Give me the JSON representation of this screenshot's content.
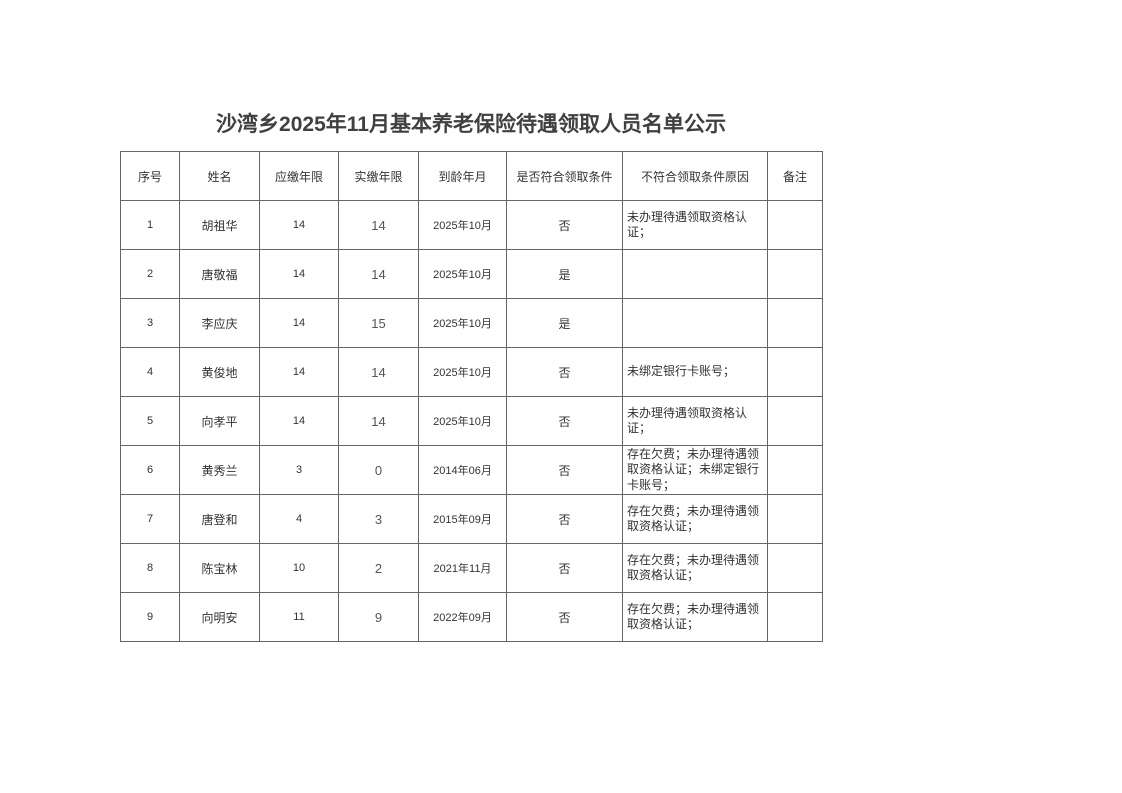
{
  "title": "沙湾乡2025年11月基本养老保险待遇领取人员名单公示",
  "table": {
    "headers": [
      "序号",
      "姓名",
      "应缴年限",
      "实缴年限",
      "到龄年月",
      "是否符合领取条件",
      "不符合领取条件原因",
      "备注"
    ],
    "rows": [
      [
        "1",
        "胡祖华",
        "14",
        "14",
        "2025年10月",
        "否",
        "未办理待遇领取资格认证；",
        ""
      ],
      [
        "2",
        "唐敬福",
        "14",
        "14",
        "2025年10月",
        "是",
        "",
        ""
      ],
      [
        "3",
        "李应庆",
        "14",
        "15",
        "2025年10月",
        "是",
        "",
        ""
      ],
      [
        "4",
        "黄俊地",
        "14",
        "14",
        "2025年10月",
        "否",
        "未绑定银行卡账号；",
        ""
      ],
      [
        "5",
        "向孝平",
        "14",
        "14",
        "2025年10月",
        "否",
        "未办理待遇领取资格认证；",
        ""
      ],
      [
        "6",
        "黄秀兰",
        "3",
        "0",
        "2014年06月",
        "否",
        "存在欠费；未办理待遇领取资格认证；未绑定银行卡账号；",
        ""
      ],
      [
        "7",
        "唐登和",
        "4",
        "3",
        "2015年09月",
        "否",
        "存在欠费；未办理待遇领取资格认证；",
        ""
      ],
      [
        "8",
        "陈宝林",
        "10",
        "2",
        "2021年11月",
        "否",
        "存在欠费；未办理待遇领取资格认证；",
        ""
      ],
      [
        "9",
        "向明安",
        "11",
        "9",
        "2022年09月",
        "否",
        "存在欠费；未办理待遇领取资格认证；",
        ""
      ]
    ]
  }
}
